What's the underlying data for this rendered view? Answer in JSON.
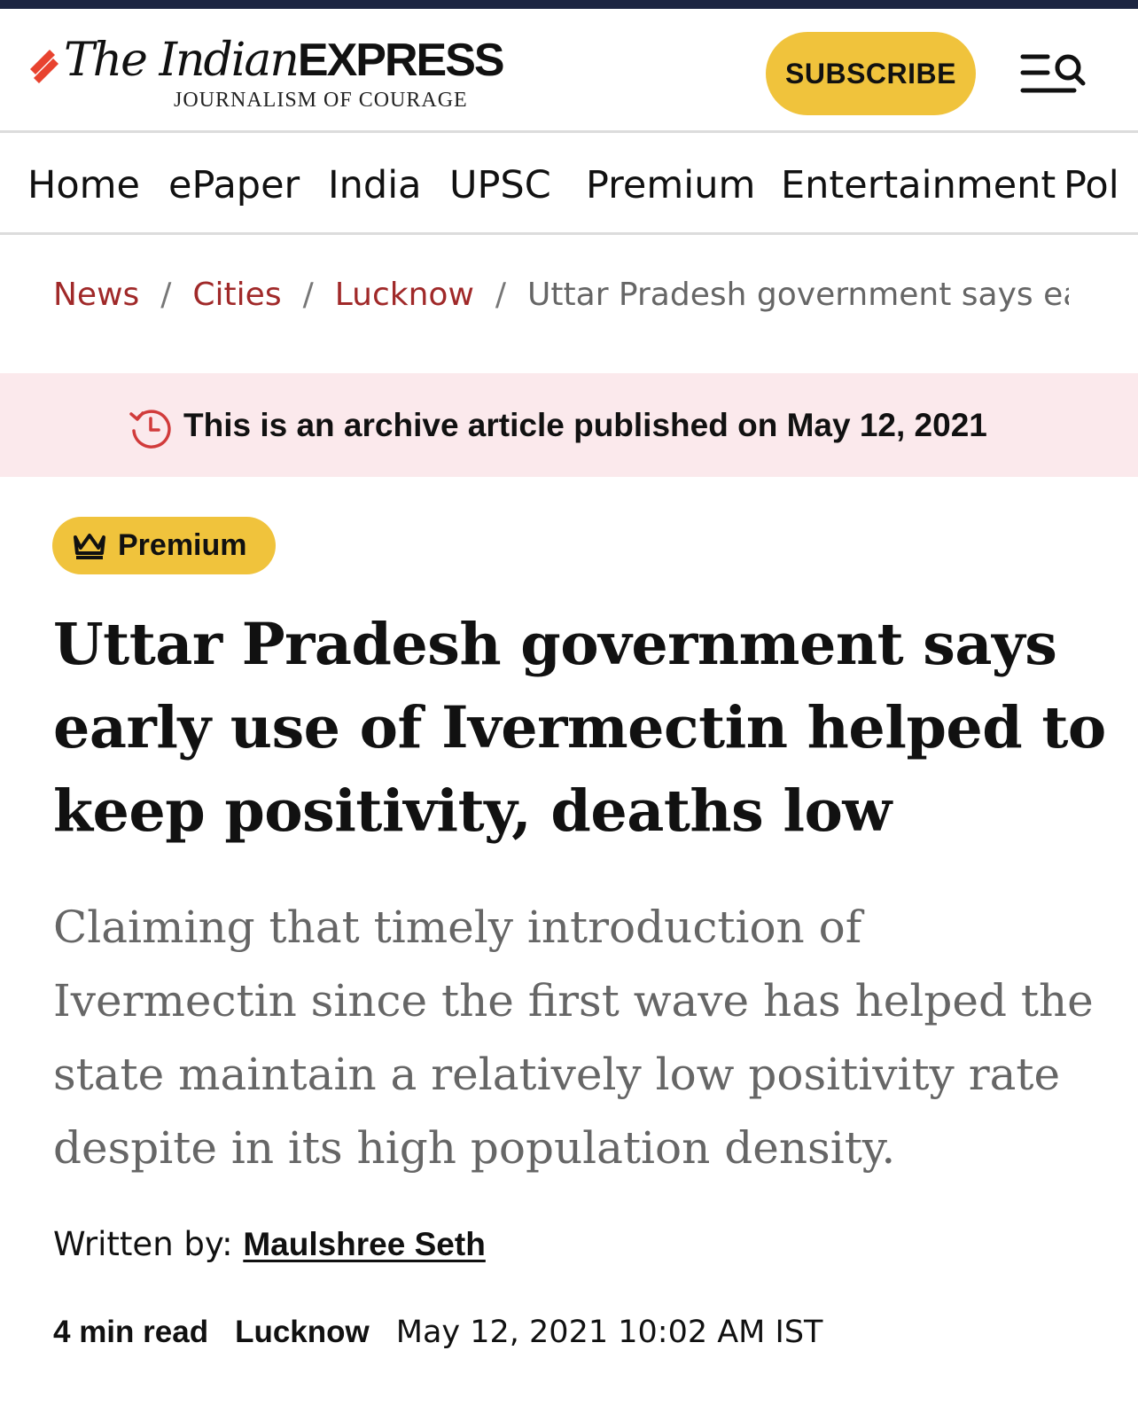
{
  "brand": {
    "name_italic": "The Indian",
    "name_bold": "EXPRESS",
    "tagline": "JOURNALISM OF COURAGE",
    "accent": "#e8432f"
  },
  "header": {
    "subscribe_label": "SUBSCRIBE",
    "subscribe_color": "#f0c33c",
    "menu_icon": "menu-search-icon"
  },
  "nav": {
    "items": [
      "Home",
      "ePaper",
      "India",
      "UPSC",
      "Premium",
      "Entertainment",
      "Pol"
    ]
  },
  "breadcrumb": {
    "items": [
      "News",
      "Cities",
      "Lucknow"
    ],
    "current": "Uttar Pradesh government says early",
    "separator": "/"
  },
  "archive": {
    "icon": "clock-history-icon",
    "text": "This is an archive article published on May 12, 2021",
    "background": "#fbe9ec"
  },
  "article": {
    "badge": "Premium",
    "badge_icon": "crown-icon",
    "headline": "Uttar Pradesh government says early use of Ivermectin helped to keep positivity, deaths low",
    "summary": "Claiming that timely introduction of Ivermectin since the first wave has helped the state maintain a relatively low positivity rate despite in its high population density.",
    "byline_label": "Written by:",
    "author": "Maulshree Seth",
    "read_time": "4 min read",
    "location": "Lucknow",
    "date": "May 12, 2021 10:02 AM IST"
  }
}
